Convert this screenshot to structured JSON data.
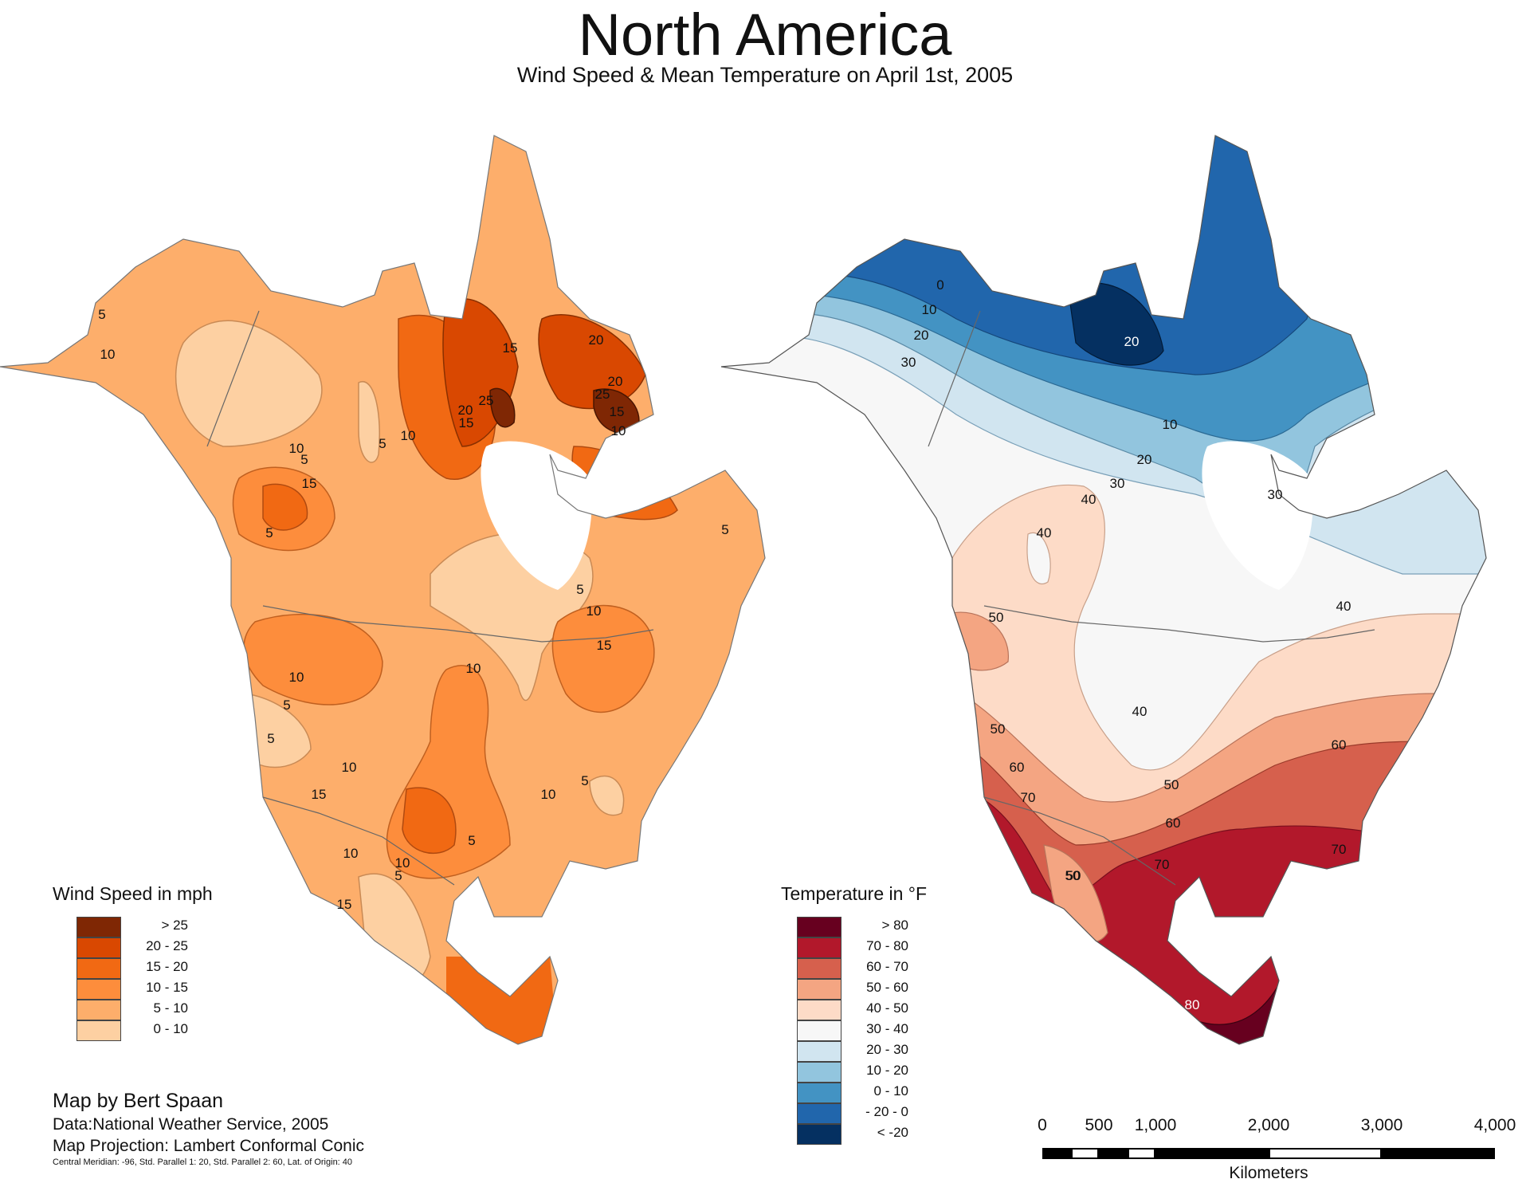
{
  "header": {
    "title": "North America",
    "subtitle": "Wind Speed & Mean Temperature on April 1st, 2005"
  },
  "wind_map": {
    "legend_title": "Wind Speed in mph",
    "legend": [
      {
        "label": "> 25",
        "color": "#7f2704"
      },
      {
        "label": "20 - 25",
        "color": "#d94801"
      },
      {
        "label": "15 - 20",
        "color": "#f16913"
      },
      {
        "label": "10 - 15",
        "color": "#fd8d3c"
      },
      {
        "label": "5 - 10",
        "color": "#fdae6b"
      },
      {
        "label": "0 - 10",
        "color": "#fdd0a2"
      }
    ],
    "contour_labels": [
      "5",
      "10",
      "5",
      "10",
      "15",
      "5",
      "10",
      "15",
      "20",
      "25",
      "15",
      "20",
      "25",
      "20",
      "15",
      "10",
      "5",
      "5",
      "10",
      "15",
      "5",
      "10",
      "10",
      "5",
      "5",
      "10",
      "15",
      "10",
      "5",
      "5",
      "10",
      "10",
      "5",
      "15"
    ]
  },
  "temp_map": {
    "legend_title": "Temperature in °F",
    "legend": [
      {
        "label": "> 80",
        "color": "#67001f"
      },
      {
        "label": "70 - 80",
        "color": "#b2182b"
      },
      {
        "label": "60 - 70",
        "color": "#d6604d"
      },
      {
        "label": "50 - 60",
        "color": "#f4a582"
      },
      {
        "label": "40 - 50",
        "color": "#fddbc7"
      },
      {
        "label": "30 - 40",
        "color": "#f7f7f7"
      },
      {
        "label": "20 - 30",
        "color": "#d1e5f0"
      },
      {
        "label": "10 - 20",
        "color": "#92c5de"
      },
      {
        "label": "0 - 10",
        "color": "#4393c3"
      },
      {
        "label": "- 20 - 0",
        "color": "#2166ac"
      },
      {
        "label": "< -20",
        "color": "#053061"
      }
    ],
    "contour_labels": [
      "0",
      "10",
      "20",
      "30",
      "20",
      "10",
      "20",
      "30",
      "40",
      "40",
      "30",
      "40",
      "50",
      "40",
      "50",
      "50",
      "60",
      "60",
      "70",
      "50",
      "60",
      "70",
      "70",
      "50",
      "80",
      "80"
    ]
  },
  "credits": {
    "author": "Map by Bert Spaan",
    "data": "Data:National Weather Service, 2005",
    "projection": "Map Projection: Lambert Conformal Conic",
    "params": "Central Meridian: -96, Std. Parallel 1: 20, Std. Parallel 2: 60, Lat. of Origin: 40"
  },
  "scale_bar": {
    "ticks": [
      "0",
      "500",
      "1,000",
      "2,000",
      "3,000",
      "4,000"
    ],
    "ticks_km": [
      0,
      500,
      1000,
      2000,
      3000,
      4000
    ],
    "unit": "Kilometers"
  }
}
